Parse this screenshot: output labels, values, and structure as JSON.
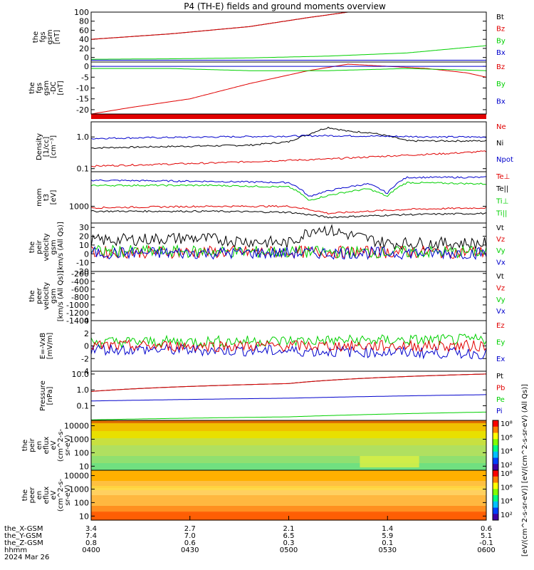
{
  "title": "P4 (TH-E) fields and ground moments overview",
  "colors": {
    "black": "#000000",
    "red": "#e00000",
    "green": "#00d000",
    "blue": "#0000cc"
  },
  "chart_data": [
    {
      "id": "fgs_gsm",
      "type": "line",
      "ylabel": [
        "the",
        "fgs",
        "gsm",
        "[nT]"
      ],
      "ylim": [
        -10,
        100
      ],
      "yticks": [
        "100",
        "80",
        "60",
        "40",
        "20",
        "0"
      ],
      "ytick_values": [
        100,
        80,
        60,
        40,
        20,
        0
      ],
      "legend": [
        "Bt",
        "Bz",
        "By",
        "Bx"
      ],
      "legend_colors": [
        "black",
        "red",
        "green",
        "blue"
      ],
      "series": [
        {
          "name": "Bt",
          "color": "black",
          "x": [
            0,
            0.2,
            0.4,
            0.55,
            0.65
          ],
          "y": [
            40,
            52,
            68,
            88,
            100
          ]
        },
        {
          "name": "Bz",
          "color": "red",
          "x": [
            0,
            0.2,
            0.4,
            0.55,
            0.65
          ],
          "y": [
            40,
            52,
            68,
            88,
            100
          ]
        },
        {
          "name": "By",
          "color": "green",
          "x": [
            0,
            0.2,
            0.4,
            0.6,
            0.8,
            1.0
          ],
          "y": [
            -4,
            -3,
            -1,
            3,
            10,
            26
          ]
        },
        {
          "name": "Bx",
          "color": "blue",
          "x": [
            0,
            0.5,
            1.0
          ],
          "y": [
            -6,
            -6,
            -6
          ]
        }
      ]
    },
    {
      "id": "fgs_gsm_dc",
      "type": "line",
      "ylabel": [
        "the",
        "fgs",
        "gsm",
        "-DC",
        "[nT]"
      ],
      "ylim": [
        -22,
        2
      ],
      "yticks": [
        "0",
        "-5",
        "-10",
        "-15",
        "-20"
      ],
      "ytick_values": [
        0,
        -5,
        -10,
        -15,
        -20
      ],
      "legend": [
        "Bz",
        "By",
        "Bx"
      ],
      "legend_colors": [
        "red",
        "green",
        "blue"
      ],
      "series": [
        {
          "name": "Bz",
          "color": "red",
          "x": [
            0,
            0.1,
            0.25,
            0.4,
            0.55,
            0.65,
            0.75,
            0.85,
            0.95,
            1.0
          ],
          "y": [
            -22,
            -19,
            -15,
            -8,
            -2,
            1,
            0,
            -1,
            -3,
            -5
          ]
        },
        {
          "name": "By",
          "color": "green",
          "x": [
            0,
            0.2,
            0.4,
            0.6,
            0.8,
            1.0
          ],
          "y": [
            -1,
            -1,
            -2,
            -2,
            -1,
            -2
          ]
        },
        {
          "name": "Bx",
          "color": "blue",
          "x": [
            0,
            0.3,
            0.6,
            1.0
          ],
          "y": [
            0,
            0,
            0,
            0
          ]
        }
      ]
    },
    {
      "id": "density",
      "type": "line",
      "ylabel": [
        "Density",
        "[1/cc]",
        "[cm⁻³]"
      ],
      "log": true,
      "ylim": [
        0.08,
        3
      ],
      "yticks": [
        "1.0",
        "0.1"
      ],
      "ytick_values": [
        1.0,
        0.1
      ],
      "legend": [
        "Ne",
        "Ni",
        "Npot"
      ],
      "legend_colors": [
        "red",
        "black",
        "blue"
      ],
      "series": [
        {
          "name": "Ni",
          "color": "black",
          "x": [
            0,
            0.2,
            0.4,
            0.5,
            0.55,
            0.6,
            0.65,
            0.7,
            0.8,
            1.0
          ],
          "y": [
            0.45,
            0.5,
            0.55,
            0.7,
            1.2,
            2.0,
            1.5,
            1.4,
            0.75,
            0.75
          ]
        },
        {
          "name": "Npot",
          "color": "blue",
          "x": [
            0,
            0.3,
            0.6,
            0.9,
            1.0
          ],
          "y": [
            0.9,
            1.0,
            1.1,
            1.0,
            1.0
          ]
        },
        {
          "name": "Ne",
          "color": "red",
          "x": [
            0,
            0.3,
            0.6,
            0.9,
            1.0
          ],
          "y": [
            0.12,
            0.15,
            0.2,
            0.3,
            0.35
          ]
        }
      ]
    },
    {
      "id": "moms_t3",
      "type": "line",
      "ylabel": [
        "mom",
        "t3",
        "[eV]"
      ],
      "log": true,
      "ylim": [
        300,
        12000
      ],
      "yticks": [
        "1000"
      ],
      "ytick_values": [
        1000
      ],
      "legend": [
        "Te⊥",
        "Te||",
        "Ti⊥",
        "Ti||"
      ],
      "legend_colors": [
        "red",
        "black",
        "green",
        "green"
      ],
      "series": [
        {
          "name": "Ti⊥",
          "color": "blue",
          "x": [
            0,
            0.3,
            0.5,
            0.55,
            0.7,
            0.75,
            0.8,
            1.0
          ],
          "y": [
            6500,
            6000,
            5500,
            2000,
            5000,
            2500,
            8000,
            8000
          ]
        },
        {
          "name": "Ti||",
          "color": "green",
          "x": [
            0,
            0.3,
            0.5,
            0.55,
            0.7,
            0.75,
            0.8,
            1.0
          ],
          "y": [
            4500,
            4500,
            4000,
            1500,
            3500,
            2000,
            5500,
            5000
          ]
        },
        {
          "name": "Te⊥",
          "color": "red",
          "x": [
            0,
            0.3,
            0.5,
            0.6,
            0.8,
            1.0
          ],
          "y": [
            900,
            1000,
            1000,
            600,
            800,
            900
          ]
        },
        {
          "name": "Te||",
          "color": "black",
          "x": [
            0,
            0.3,
            0.5,
            0.6,
            0.8,
            1.0
          ],
          "y": [
            700,
            700,
            650,
            450,
            550,
            600
          ]
        }
      ]
    },
    {
      "id": "peir_velocity",
      "type": "line",
      "ylabel": [
        "the",
        "peir",
        "velocity",
        "gsm",
        "[km/s (All Qs)]"
      ],
      "ylim": [
        -20,
        35
      ],
      "yticks": [
        "30",
        "20",
        "10",
        "0",
        "-10",
        "-20"
      ],
      "ytick_values": [
        30,
        20,
        10,
        0,
        -10,
        -20
      ],
      "legend": [
        "Vt",
        "Vz",
        "Vy",
        "Vx"
      ],
      "legend_colors": [
        "black",
        "red",
        "green",
        "blue"
      ],
      "series": [
        {
          "name": "Vt",
          "color": "black",
          "x": [
            0,
            0.25,
            0.5,
            0.57,
            0.75,
            1.0
          ],
          "y": [
            15,
            18,
            12,
            30,
            12,
            12
          ]
        },
        {
          "name": "Vz",
          "color": "red",
          "x": [
            0,
            0.5,
            1.0
          ],
          "y": [
            2,
            2,
            2
          ]
        },
        {
          "name": "Vy",
          "color": "green",
          "x": [
            0,
            0.5,
            1.0
          ],
          "y": [
            3,
            2,
            2
          ]
        },
        {
          "name": "Vx",
          "color": "blue",
          "x": [
            0,
            0.5,
            1.0
          ],
          "y": [
            1,
            1,
            1
          ]
        }
      ]
    },
    {
      "id": "peer_velocity",
      "type": "line",
      "ylabel": [
        "the",
        "peer",
        "velocity",
        "gsm",
        "[km/s (All Qs)]"
      ],
      "ylim": [
        -1400,
        -150
      ],
      "yticks": [
        "-200",
        "-400",
        "-600",
        "-800",
        "-1000",
        "-1200",
        "-1400"
      ],
      "ytick_values": [
        -200,
        -400,
        -600,
        -800,
        -1000,
        -1200,
        -1400
      ],
      "legend": [
        "Vt",
        "Vz",
        "Vy",
        "Vx"
      ],
      "legend_colors": [
        "black",
        "red",
        "green",
        "blue"
      ],
      "series": []
    },
    {
      "id": "e_vxb",
      "type": "line",
      "ylabel": [
        "E=-VxB",
        "[mV/m]"
      ],
      "ylim": [
        -4,
        4
      ],
      "yticks": [
        "4",
        "2",
        "0",
        "-2",
        "-4"
      ],
      "ytick_values": [
        4,
        2,
        0,
        -2,
        -4
      ],
      "legend": [
        "Ez",
        "Ey",
        "Ex"
      ],
      "legend_colors": [
        "red",
        "green",
        "blue"
      ],
      "series": [
        {
          "name": "Ey",
          "color": "green",
          "x": [
            0,
            0.5,
            1.0
          ],
          "y": [
            0.6,
            0.8,
            1.0
          ]
        },
        {
          "name": "Ex",
          "color": "blue",
          "x": [
            0,
            0.5,
            1.0
          ],
          "y": [
            -0.5,
            -0.8,
            -1.2
          ]
        },
        {
          "name": "Ez",
          "color": "red",
          "x": [
            0,
            0.5,
            1.0
          ],
          "y": [
            0,
            0,
            0
          ]
        }
      ]
    },
    {
      "id": "pressure",
      "type": "line",
      "ylabel": [
        "Pressure",
        "[nPa]"
      ],
      "log": true,
      "ylim": [
        0.012,
        15
      ],
      "yticks": [
        "10.0",
        "1.0",
        "0.1"
      ],
      "ytick_values": [
        10,
        1,
        0.1
      ],
      "legend": [
        "Pt",
        "Pb",
        "Pe",
        "Pi"
      ],
      "legend_colors": [
        "black",
        "red",
        "green",
        "blue"
      ],
      "series": [
        {
          "name": "Pt",
          "color": "black",
          "x": [
            0,
            0.5,
            1.0
          ],
          "y": [
            0.8,
            2.5,
            10
          ]
        },
        {
          "name": "Pb",
          "color": "red",
          "x": [
            0,
            0.5,
            1.0
          ],
          "y": [
            0.8,
            2.5,
            10
          ]
        },
        {
          "name": "Pi",
          "color": "blue",
          "x": [
            0,
            0.5,
            1.0
          ],
          "y": [
            0.2,
            0.3,
            0.5
          ]
        },
        {
          "name": "Pe",
          "color": "green",
          "x": [
            0,
            0.5,
            1.0
          ],
          "y": [
            0.013,
            0.02,
            0.04
          ]
        }
      ]
    },
    {
      "id": "peir_en_eflux",
      "type": "heatmap",
      "ylabel": [
        "the",
        "peir",
        "en",
        "eflux",
        "eV",
        "(cm^2-s-",
        "sr-eV)"
      ],
      "log": true,
      "ylim": [
        5,
        25000
      ],
      "yticks": [
        "10000",
        "1000",
        "100",
        "10"
      ],
      "ytick_values": [
        10000,
        1000,
        100,
        10
      ],
      "colorbar_ticks": [
        "10⁸",
        "10⁶",
        "10⁴",
        "10²"
      ]
    },
    {
      "id": "peer_en_eflux",
      "type": "heatmap",
      "ylabel": [
        "the",
        "peer",
        "en",
        "eflux",
        "eV",
        "(cm^2-s-",
        "sr-eV)"
      ],
      "log": true,
      "ylim": [
        5,
        25000
      ],
      "yticks": [
        "10000",
        "1000",
        "100",
        "10"
      ],
      "ytick_values": [
        10000,
        1000,
        100,
        10
      ],
      "colorbar_ticks": [
        "10⁸",
        "10⁶",
        "10⁴",
        "10²"
      ]
    }
  ],
  "colorbar_label": "[eV/(cm^2-s-sr-eV)] [eV/(cm^2-s-sr-eV) (All Qs)]",
  "x_axis": {
    "rows": [
      {
        "label": "the_X-GSM",
        "values": [
          "3.4",
          "2.7",
          "2.1",
          "1.4",
          "0.6"
        ]
      },
      {
        "label": "the_Y-GSM",
        "values": [
          "7.4",
          "7.0",
          "6.5",
          "5.9",
          "5.1"
        ]
      },
      {
        "label": "the_Z-GSM",
        "values": [
          "0.8",
          "0.6",
          "0.3",
          "0.1",
          "-0.1"
        ]
      },
      {
        "label": "hhmm",
        "values": [
          "0400",
          "0430",
          "0500",
          "0530",
          "0600"
        ]
      }
    ],
    "date": "2024 Mar 26"
  }
}
